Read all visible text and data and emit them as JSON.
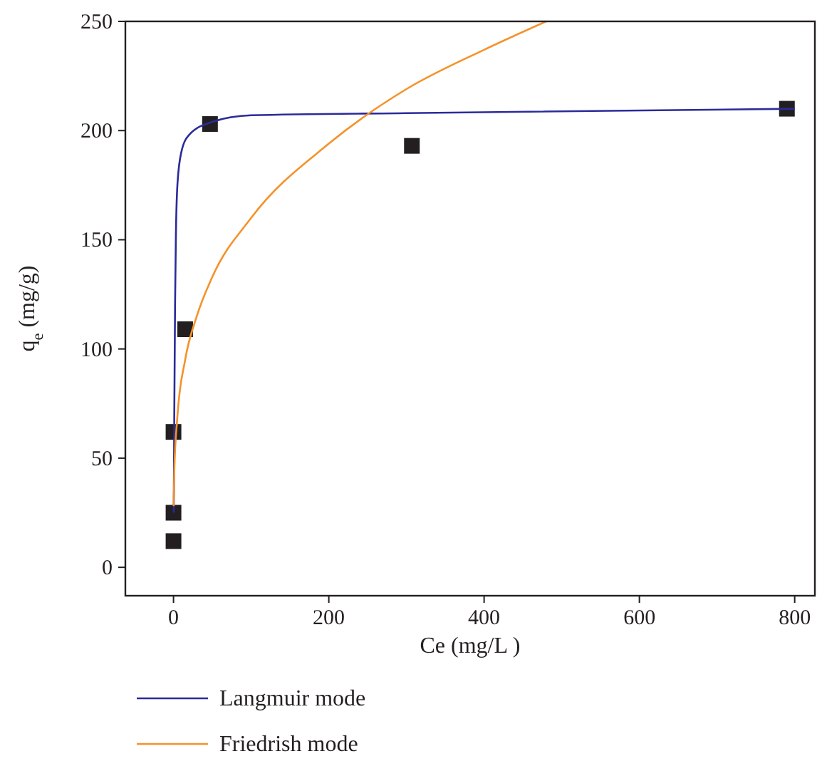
{
  "chart_data": {
    "type": "scatter",
    "xlabel": "Ce (mg/L )",
    "ylabel": "q$_{e}$ (mg/g)",
    "xlim": [
      -62,
      826
    ],
    "ylim": [
      -13,
      250
    ],
    "xticks": [
      0,
      200,
      400,
      600,
      800
    ],
    "yticks": [
      0,
      50,
      100,
      150,
      200,
      250
    ],
    "grid": false,
    "legend": "bottom",
    "series": [
      {
        "color": "#231f20",
        "marker": "square",
        "x": [
          0,
          0,
          0,
          15,
          47,
          307,
          790
        ],
        "values": [
          12,
          25,
          62,
          109,
          203,
          193,
          210
        ]
      },
      {
        "type": "line",
        "name": "Langmuir mode",
        "color": "#2b2b9a",
        "marker": "none",
        "x": [
          0.3,
          1,
          2,
          3,
          5,
          10,
          20,
          50,
          100,
          300,
          800
        ],
        "values": [
          25,
          70,
          120,
          150,
          175,
          190,
          198,
          204,
          207,
          208,
          210
        ]
      },
      {
        "type": "line",
        "name": "Friedrish mode",
        "color": "#f5922a",
        "marker": "none",
        "x": [
          0.2,
          1,
          5,
          15,
          30,
          50,
          100,
          200,
          300,
          400,
          480
        ],
        "values": [
          28,
          44,
          69,
          95,
          115,
          133,
          160,
          194,
          219,
          237,
          250
        ]
      }
    ]
  }
}
